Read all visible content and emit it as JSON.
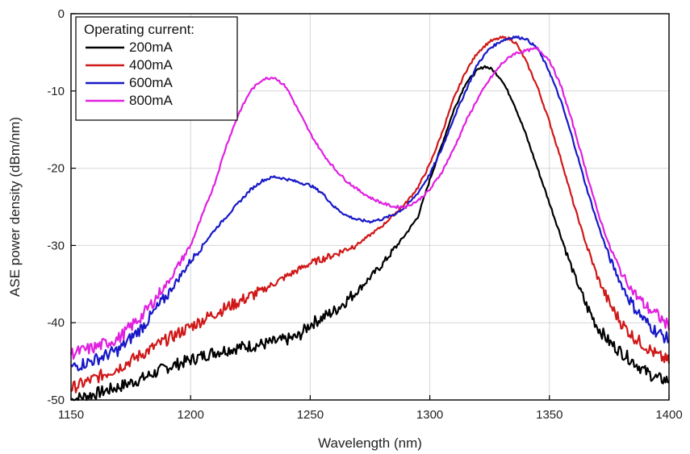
{
  "chart_data": {
    "type": "line",
    "title": "",
    "xlabel": "Wavelength (nm)",
    "ylabel": "ASE power density (dBm/nm)",
    "xlim": [
      1150,
      1400
    ],
    "ylim": [
      -50,
      0
    ],
    "xticks": [
      1150,
      1200,
      1250,
      1300,
      1350,
      1400
    ],
    "yticks": [
      0,
      -10,
      -20,
      -30,
      -40,
      -50
    ],
    "grid": true,
    "legend": {
      "title": "Operating current:",
      "position": "top-left"
    },
    "series": [
      {
        "name": "200mA",
        "color": "#000000",
        "x": [
          1150,
          1160,
          1170,
          1180,
          1190,
          1200,
          1210,
          1220,
          1230,
          1240,
          1245,
          1250,
          1260,
          1270,
          1280,
          1290,
          1295,
          1300,
          1305,
          1310,
          1315,
          1320,
          1323,
          1326,
          1330,
          1335,
          1340,
          1345,
          1350,
          1355,
          1360,
          1365,
          1370,
          1375,
          1380,
          1385,
          1390,
          1395,
          1400
        ],
        "y": [
          -50,
          -49.2,
          -48.3,
          -47.2,
          -45.8,
          -44.8,
          -43.8,
          -43.2,
          -42.8,
          -42.2,
          -41.8,
          -40.2,
          -38.5,
          -35.8,
          -32.5,
          -28.5,
          -26.3,
          -21.5,
          -17,
          -12.5,
          -9,
          -7.3,
          -6.8,
          -7.2,
          -8.5,
          -11.5,
          -15.5,
          -20,
          -24.5,
          -29,
          -33.5,
          -37.5,
          -40.5,
          -42.5,
          -43.8,
          -45,
          -46.3,
          -47.2,
          -47.5
        ]
      },
      {
        "name": "400mA",
        "color": "#d01818",
        "x": [
          1150,
          1160,
          1170,
          1180,
          1190,
          1200,
          1210,
          1220,
          1230,
          1240,
          1250,
          1260,
          1270,
          1280,
          1290,
          1295,
          1300,
          1305,
          1310,
          1315,
          1320,
          1325,
          1330,
          1333,
          1336,
          1340,
          1345,
          1350,
          1355,
          1360,
          1365,
          1370,
          1375,
          1380,
          1385,
          1390,
          1395,
          1400
        ],
        "y": [
          -48.5,
          -47.2,
          -45.8,
          -44,
          -42.2,
          -40.5,
          -38.8,
          -37.3,
          -35.8,
          -34,
          -32.3,
          -31.2,
          -29.8,
          -27.5,
          -24.5,
          -22.5,
          -19.5,
          -15.5,
          -11,
          -7.5,
          -5,
          -3.6,
          -3.1,
          -3.2,
          -3.8,
          -6,
          -9.5,
          -14,
          -19,
          -24.5,
          -29.5,
          -34,
          -37.5,
          -40,
          -41.8,
          -43,
          -44.2,
          -45
        ]
      },
      {
        "name": "600mA",
        "color": "#1818c8",
        "x": [
          1150,
          1160,
          1170,
          1180,
          1190,
          1200,
          1210,
          1220,
          1225,
          1230,
          1235,
          1240,
          1245,
          1250,
          1255,
          1260,
          1265,
          1270,
          1275,
          1280,
          1285,
          1290,
          1295,
          1300,
          1305,
          1310,
          1315,
          1320,
          1325,
          1330,
          1335,
          1340,
          1345,
          1350,
          1355,
          1360,
          1365,
          1370,
          1375,
          1380,
          1385,
          1390,
          1395,
          1400
        ],
        "y": [
          -45.8,
          -44.8,
          -43.5,
          -40.5,
          -36.5,
          -32,
          -28,
          -24.5,
          -22.8,
          -21.6,
          -21.1,
          -21.4,
          -21.8,
          -22.2,
          -23.2,
          -25,
          -26.1,
          -26.7,
          -26.9,
          -26.6,
          -26,
          -25,
          -23.2,
          -20.8,
          -17.5,
          -13.5,
          -10,
          -6.5,
          -4.5,
          -3.5,
          -3,
          -3.2,
          -4.5,
          -7.5,
          -11.5,
          -16.5,
          -22,
          -27,
          -31.5,
          -35,
          -37.8,
          -39.8,
          -41.2,
          -42.2
        ]
      },
      {
        "name": "800mA",
        "color": "#e020e0",
        "x": [
          1150,
          1160,
          1170,
          1180,
          1190,
          1200,
          1210,
          1215,
          1220,
          1225,
          1230,
          1235,
          1240,
          1245,
          1250,
          1255,
          1260,
          1265,
          1270,
          1275,
          1280,
          1285,
          1290,
          1295,
          1300,
          1305,
          1310,
          1315,
          1320,
          1325,
          1330,
          1335,
          1340,
          1345,
          1350,
          1355,
          1360,
          1365,
          1370,
          1375,
          1380,
          1385,
          1390,
          1395,
          1400
        ],
        "y": [
          -44,
          -43.2,
          -42,
          -39,
          -35,
          -30,
          -22,
          -17,
          -13,
          -10,
          -8.5,
          -8.2,
          -9.5,
          -12.5,
          -15.5,
          -18,
          -20,
          -21.6,
          -22.8,
          -23.8,
          -24.5,
          -25,
          -25,
          -24.2,
          -22.8,
          -20.5,
          -17.5,
          -14,
          -11,
          -8.5,
          -6.5,
          -5.2,
          -4.8,
          -4.5,
          -6,
          -9.5,
          -14.5,
          -20,
          -25.5,
          -30,
          -33.5,
          -36,
          -37.8,
          -39,
          -40.5
        ]
      }
    ]
  }
}
